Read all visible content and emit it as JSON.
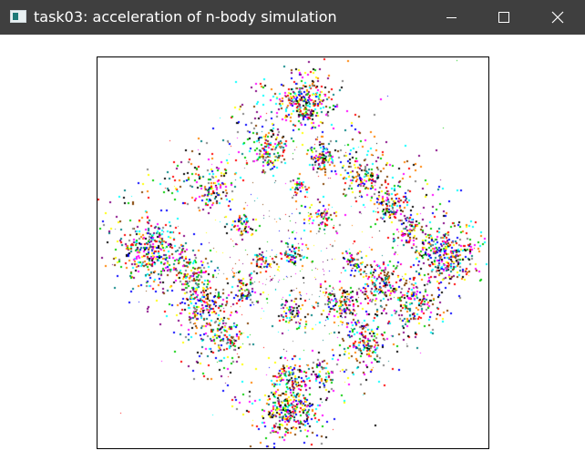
{
  "window": {
    "title": "task03: acceleration of n-body simulation",
    "titlebar_color": "#3f3f3f",
    "titlebar_text_color": "#ffffff",
    "controls": {
      "minimize_icon": "minimize-icon",
      "maximize_icon": "maximize-icon",
      "close_icon": "close-icon"
    }
  },
  "simulation": {
    "background": "#ffffff",
    "border_color": "#000000",
    "particle_palette": [
      "#ff0000",
      "#00cc00",
      "#0000ff",
      "#ffff00",
      "#ff00ff",
      "#00ffff",
      "#000000",
      "#808080",
      "#804000",
      "#008080",
      "#800080",
      "#ff8000"
    ]
  }
}
